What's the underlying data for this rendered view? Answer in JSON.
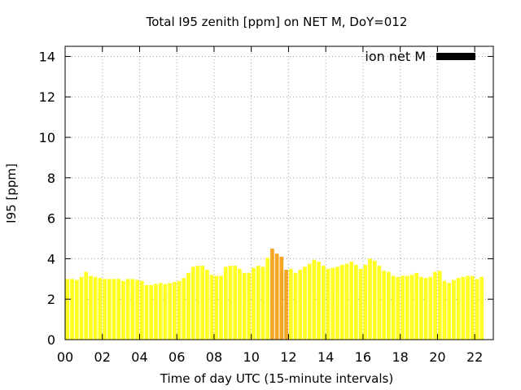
{
  "chart_data": {
    "type": "bar",
    "title": "Total I95 zenith [ppm] on NET M, DoY=012",
    "xlabel": "Time of day UTC (15-minute intervals)",
    "ylabel": "I95 [ppm]",
    "xlim": [
      0,
      23
    ],
    "ylim": [
      0,
      14.5
    ],
    "x_ticks": [
      "00",
      "02",
      "04",
      "06",
      "08",
      "10",
      "12",
      "14",
      "16",
      "18",
      "20",
      "22"
    ],
    "y_ticks": [
      "0",
      "2",
      "4",
      "6",
      "8",
      "10",
      "12",
      "14"
    ],
    "grid": true,
    "legend": {
      "placement": "top-right",
      "entries": [
        {
          "label": "ion net M",
          "color": "#000000"
        }
      ]
    },
    "bar_interval_hours": 0.25,
    "normal_color": "#ffff22",
    "highlight_color": "#f5a623",
    "highlight_range_hours": [
      11.0,
      12.0
    ],
    "values": [
      3.0,
      3.0,
      2.95,
      3.1,
      3.35,
      3.15,
      3.1,
      3.05,
      3.0,
      3.0,
      3.0,
      3.0,
      2.9,
      3.0,
      3.0,
      2.95,
      2.9,
      2.7,
      2.7,
      2.75,
      2.8,
      2.75,
      2.8,
      2.85,
      2.9,
      3.05,
      3.3,
      3.6,
      3.65,
      3.65,
      3.45,
      3.2,
      3.15,
      3.15,
      3.6,
      3.65,
      3.65,
      3.5,
      3.3,
      3.3,
      3.55,
      3.65,
      3.6,
      4.05,
      4.5,
      4.25,
      4.1,
      3.45,
      3.5,
      3.3,
      3.45,
      3.6,
      3.75,
      3.95,
      3.85,
      3.65,
      3.5,
      3.55,
      3.6,
      3.7,
      3.75,
      3.85,
      3.7,
      3.5,
      3.7,
      4.0,
      3.9,
      3.65,
      3.4,
      3.35,
      3.15,
      3.1,
      3.15,
      3.15,
      3.2,
      3.3,
      3.1,
      3.05,
      3.1,
      3.35,
      3.4,
      2.9,
      2.8,
      2.95,
      3.05,
      3.1,
      3.15,
      3.15,
      3.0,
      3.1
    ]
  }
}
